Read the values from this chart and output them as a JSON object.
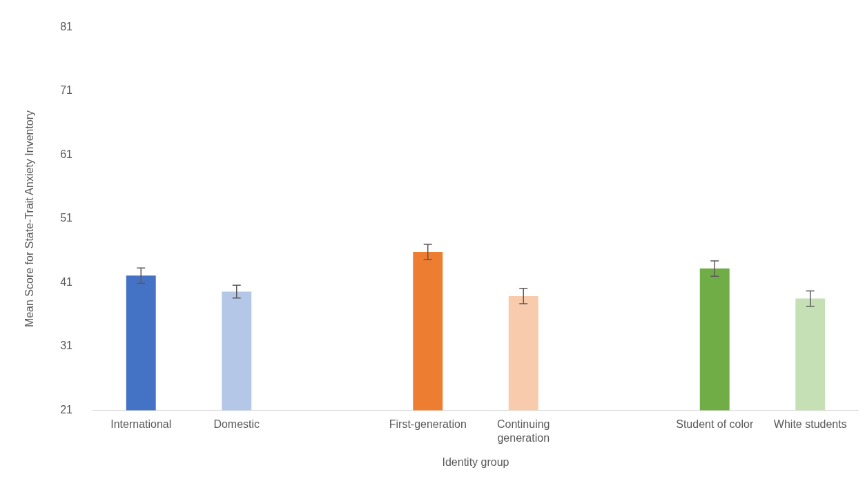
{
  "chart_data": {
    "type": "bar",
    "xlabel": "Identity group",
    "ylabel": "Mean Score for State-Trait Anxiety Inventory",
    "categories": [
      "International",
      "Domestic",
      null,
      "First-generation",
      "Continuing generation",
      null,
      "Student of color",
      "White students"
    ],
    "values": [
      42.1,
      39.6,
      null,
      45.8,
      38.9,
      null,
      43.2,
      38.5
    ],
    "colors": [
      "#4472c4",
      "#b4c7e7",
      "#ffffff",
      "#ed7d31",
      "#f8cbad",
      "#ffffff",
      "#70ad47",
      "#c5e0b4"
    ],
    "errors": [
      1.2,
      1.0,
      null,
      1.2,
      1.2,
      null,
      1.2,
      1.2
    ],
    "ylim": [
      21,
      81
    ],
    "yticks": [
      21,
      31,
      41,
      51,
      61,
      71,
      81
    ],
    "grid": false,
    "legend": false
  }
}
